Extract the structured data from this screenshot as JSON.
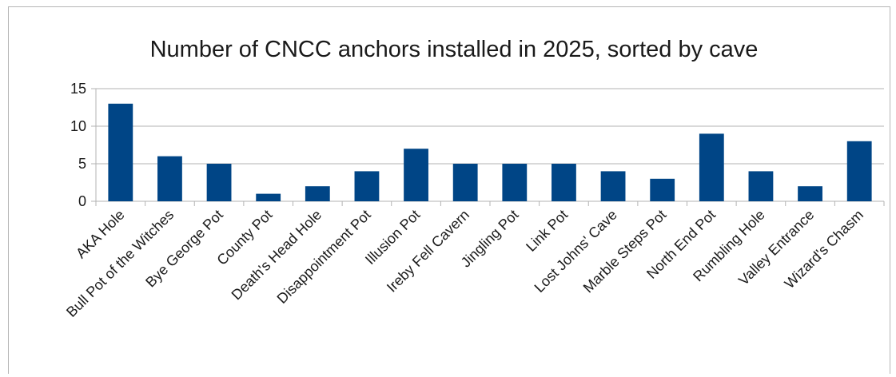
{
  "chart_data": {
    "type": "bar",
    "title": "Number of CNCC anchors installed in 2025, sorted by cave",
    "xlabel": "",
    "ylabel": "",
    "categories": [
      "AKA Hole",
      "Bull Pot of the Witches",
      "Bye George Pot",
      "County Pot",
      "Death's Head Hole",
      "Disappointment Pot",
      "Illusion Pot",
      "Ireby Fell Cavern",
      "Jingling Pot",
      "Link Pot",
      "Lost Johns' Cave",
      "Marble Steps Pot",
      "North End Pot",
      "Rumbling Hole",
      "Valley Entrance",
      "Wizard's Chasm"
    ],
    "values": [
      13,
      6,
      5,
      1,
      2,
      4,
      7,
      5,
      5,
      5,
      4,
      3,
      9,
      4,
      2,
      8
    ],
    "ylim": [
      0,
      15
    ],
    "yticks": [
      0,
      5,
      10,
      15
    ],
    "grid": true,
    "legend": "none",
    "bar_color": "#004586"
  }
}
